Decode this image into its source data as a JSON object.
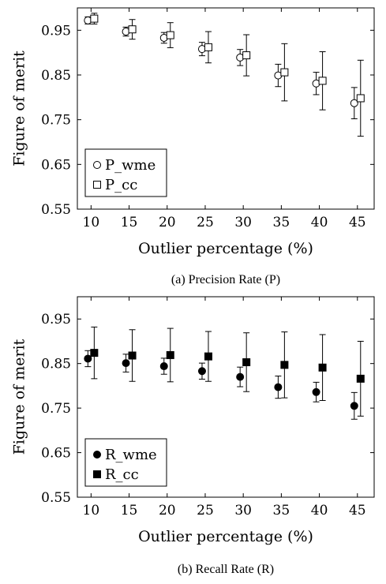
{
  "chart_data": [
    {
      "type": "scatter",
      "caption": "(a) Precision Rate (P)",
      "xlabel": "Outlier percentage (%)",
      "ylabel": "Figure of merit",
      "x_ticks": [
        "10",
        "15",
        "20",
        "25",
        "30",
        "35",
        "40",
        "45"
      ],
      "y_ticks": [
        "0.55",
        "0.65",
        "0.75",
        "0.85",
        "0.95"
      ],
      "xlim": [
        8.2,
        47.2
      ],
      "ylim": [
        0.55,
        1.0
      ],
      "grid": false,
      "legend_position": "bottom-left",
      "x": [
        10,
        15,
        20,
        25,
        30,
        35,
        40,
        45
      ],
      "series": [
        {
          "name": "P_wme",
          "marker": "circle-open",
          "values": [
            0.972,
            0.947,
            0.933,
            0.908,
            0.889,
            0.849,
            0.831,
            0.787
          ],
          "err": [
            0.008,
            0.01,
            0.012,
            0.015,
            0.018,
            0.025,
            0.025,
            0.035
          ]
        },
        {
          "name": "P_cc",
          "marker": "square-open",
          "values": [
            0.976,
            0.952,
            0.939,
            0.912,
            0.894,
            0.856,
            0.837,
            0.798
          ],
          "err": [
            0.012,
            0.022,
            0.028,
            0.035,
            0.046,
            0.064,
            0.065,
            0.085
          ]
        }
      ]
    },
    {
      "type": "scatter",
      "caption": "(b) Recall Rate (R)",
      "xlabel": "Outlier percentage (%)",
      "ylabel": "Figure of merit",
      "x_ticks": [
        "10",
        "15",
        "20",
        "25",
        "30",
        "35",
        "40",
        "45"
      ],
      "y_ticks": [
        "0.55",
        "0.65",
        "0.75",
        "0.85",
        "0.95"
      ],
      "xlim": [
        8.2,
        47.2
      ],
      "ylim": [
        0.55,
        1.0
      ],
      "grid": false,
      "legend_position": "bottom-left",
      "x": [
        10,
        15,
        20,
        25,
        30,
        35,
        40,
        45
      ],
      "series": [
        {
          "name": "R_wme",
          "marker": "circle-filled",
          "values": [
            0.861,
            0.851,
            0.844,
            0.833,
            0.82,
            0.797,
            0.786,
            0.755
          ],
          "err": [
            0.018,
            0.02,
            0.018,
            0.018,
            0.022,
            0.025,
            0.022,
            0.03
          ]
        },
        {
          "name": "R_cc",
          "marker": "square-filled",
          "values": [
            0.874,
            0.868,
            0.869,
            0.866,
            0.853,
            0.847,
            0.841,
            0.816
          ],
          "err": [
            0.058,
            0.058,
            0.06,
            0.056,
            0.066,
            0.074,
            0.074,
            0.084
          ]
        }
      ]
    }
  ]
}
